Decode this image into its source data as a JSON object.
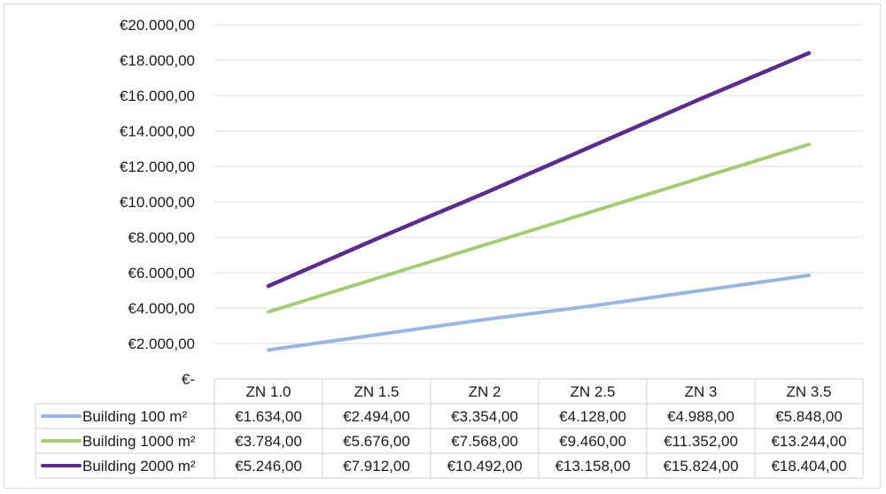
{
  "chart_data": {
    "type": "line",
    "title": "",
    "xlabel": "",
    "ylabel": "",
    "ylim": [
      0,
      20000
    ],
    "grid": true,
    "y_tick_labels": [
      "€-",
      "€2.000,00",
      "€4.000,00",
      "€6.000,00",
      "€8.000,00",
      "€10.000,00",
      "€12.000,00",
      "€14.000,00",
      "€16.000,00",
      "€18.000,00",
      "€20.000,00"
    ],
    "y_tick_values": [
      0,
      2000,
      4000,
      6000,
      8000,
      10000,
      12000,
      14000,
      16000,
      18000,
      20000
    ],
    "categories": [
      "ZN 1.0",
      "ZN 1.5",
      "ZN 2",
      "ZN 2.5",
      "ZN 3",
      "ZN 3.5"
    ],
    "legend_placement": "data-table",
    "series": [
      {
        "name": "Building 100 m²",
        "color": "#9ab5de",
        "values": [
          1634,
          2494,
          3354,
          4128,
          4988,
          5848
        ],
        "labels": [
          "€1.634,00",
          "€2.494,00",
          "€3.354,00",
          "€4.128,00",
          "€4.988,00",
          "€5.848,00"
        ]
      },
      {
        "name": "Building 1000 m²",
        "color": "#a6cb78",
        "values": [
          3784,
          5676,
          7568,
          9460,
          11352,
          13244
        ],
        "labels": [
          "€3.784,00",
          "€5.676,00",
          "€7.568,00",
          "€9.460,00",
          "€11.352,00",
          "€13.244,00"
        ]
      },
      {
        "name": "Building 2000 m²",
        "color": "#5b2c8a",
        "values": [
          5246,
          7912,
          10492,
          13158,
          15824,
          18404
        ],
        "labels": [
          "€5.246,00",
          "€7.912,00",
          "€10.492,00",
          "€13.158,00",
          "€15.824,00",
          "€18.404,00"
        ]
      }
    ]
  }
}
